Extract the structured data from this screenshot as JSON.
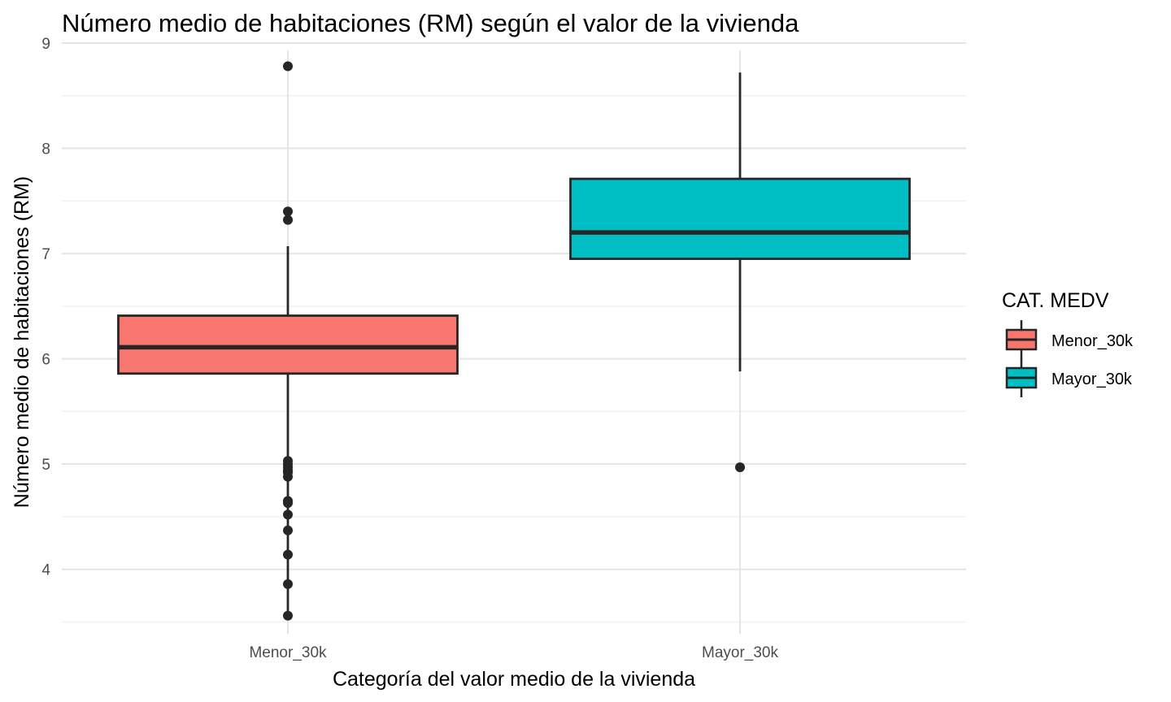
{
  "chart_data": {
    "type": "box",
    "title": "Número medio de habitaciones (RM) según el valor de la vivienda",
    "xlabel": "Categoría del valor medio de la vivienda",
    "ylabel": "Número medio de habitaciones (RM)",
    "ylim": [
      3.45,
      9.1
    ],
    "y_ticks": [
      4,
      5,
      6,
      7,
      8,
      9
    ],
    "grid": true,
    "categories": [
      "Menor_30k",
      "Mayor_30k"
    ],
    "legend": {
      "title": "CAT. MEDV",
      "position": "right",
      "entries": [
        "Menor_30k",
        "Mayor_30k"
      ]
    },
    "series": [
      {
        "name": "Menor_30k",
        "color": "#F8766D",
        "whisker_low": 3.561,
        "q1": 5.86,
        "median": 6.11,
        "q3": 6.41,
        "whisker_high": 7.07,
        "outliers": [
          8.78,
          7.4,
          7.32,
          5.03,
          5.0,
          4.97,
          4.94,
          4.92,
          4.88,
          4.65,
          4.63,
          4.52,
          4.37,
          4.14,
          3.86,
          3.56
        ]
      },
      {
        "name": "Mayor_30k",
        "color": "#00BFC4",
        "whisker_low": 5.88,
        "q1": 6.95,
        "median": 7.2,
        "q3": 7.71,
        "whisker_high": 8.72,
        "outliers": [
          4.97
        ]
      }
    ]
  }
}
